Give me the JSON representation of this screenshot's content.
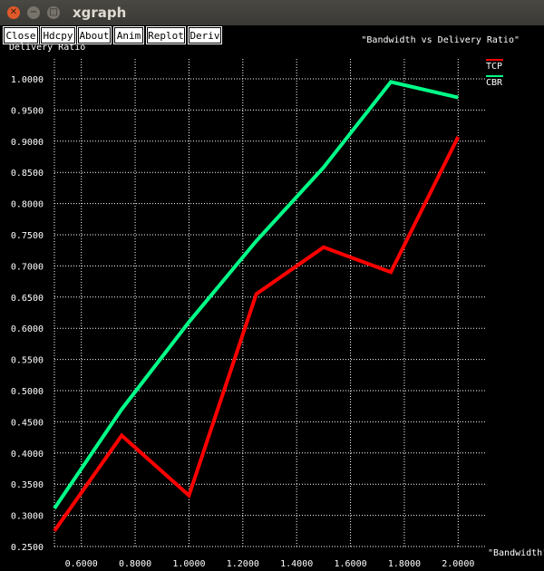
{
  "window": {
    "title": "xgraph"
  },
  "toolbar": {
    "buttons": [
      {
        "label": "Close"
      },
      {
        "label": "Hdcpy"
      },
      {
        "label": "About"
      },
      {
        "label": "Anim"
      },
      {
        "label": "Replot"
      },
      {
        "label": "Deriv"
      }
    ]
  },
  "chart_data": {
    "type": "line",
    "title": "\"Bandwidth vs Delivery Ratio\"",
    "xlabel": "\"Bandwidth\"",
    "ylabel": "Delivery Ratio",
    "xlim": [
      0.5,
      2.0
    ],
    "ylim": [
      0.25,
      1.0
    ],
    "grid": true,
    "legend_position": "top-right",
    "x_ticks": [
      "0.6000",
      "0.8000",
      "1.0000",
      "1.2000",
      "1.4000",
      "1.6000",
      "1.8000",
      "2.0000"
    ],
    "y_ticks": [
      "0.2500",
      "0.3000",
      "0.3500",
      "0.4000",
      "0.4500",
      "0.5000",
      "0.5500",
      "0.6000",
      "0.6500",
      "0.7000",
      "0.7500",
      "0.8000",
      "0.8500",
      "0.9000",
      "0.9500",
      "1.0000"
    ],
    "series": [
      {
        "name": "TCP",
        "color": "#ff0000",
        "x": [
          0.5,
          0.75,
          1.0,
          1.25,
          1.5,
          1.75,
          2.0
        ],
        "y": [
          0.275,
          0.428,
          0.332,
          0.655,
          0.73,
          0.69,
          0.907
        ]
      },
      {
        "name": "CBR",
        "color": "#00ff88",
        "x": [
          0.5,
          0.75,
          1.0,
          1.25,
          1.5,
          1.75,
          2.0
        ],
        "y": [
          0.311,
          0.47,
          0.61,
          0.74,
          0.858,
          0.995,
          0.97
        ]
      }
    ]
  }
}
